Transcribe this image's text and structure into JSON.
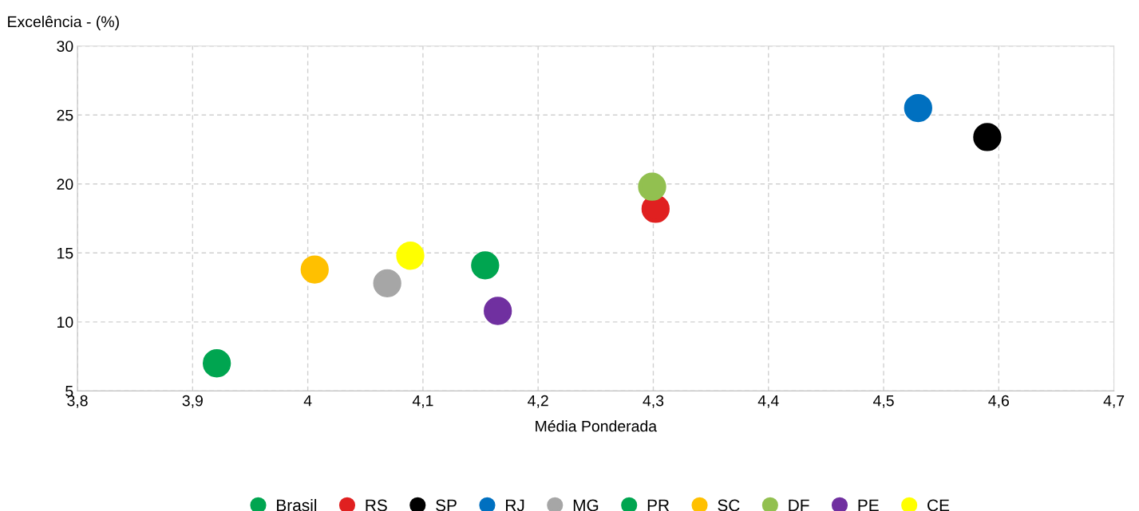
{
  "chart_data": {
    "type": "scatter",
    "xlabel": "Média Ponderada",
    "ylabel": "Excelência - (%)",
    "xlim": [
      3.8,
      4.7
    ],
    "xticks": [
      {
        "value": 3.8,
        "label": "3,8"
      },
      {
        "value": 3.9,
        "label": "3,9"
      },
      {
        "value": 4.0,
        "label": "4"
      },
      {
        "value": 4.1,
        "label": "4,1"
      },
      {
        "value": 4.2,
        "label": "4,2"
      },
      {
        "value": 4.3,
        "label": "4,3"
      },
      {
        "value": 4.4,
        "label": "4,4"
      },
      {
        "value": 4.5,
        "label": "4,5"
      },
      {
        "value": 4.6,
        "label": "4,6"
      },
      {
        "value": 4.7,
        "label": "4,7"
      }
    ],
    "ylim": [
      5,
      30
    ],
    "yticks": [
      5,
      10,
      15,
      20,
      25,
      30
    ],
    "grid": true,
    "legend": "bottom",
    "marker": "circle",
    "series": [
      {
        "name": "Brasil",
        "color": "#00a550",
        "x": [
          4.154
        ],
        "values": [
          14.1
        ]
      },
      {
        "name": "RS",
        "color": "#e02020",
        "x": [
          4.302
        ],
        "values": [
          18.2
        ]
      },
      {
        "name": "SP",
        "color": "#000000",
        "x": [
          4.59
        ],
        "values": [
          23.4
        ]
      },
      {
        "name": "RJ",
        "color": "#0070c0",
        "x": [
          4.53
        ],
        "values": [
          25.5
        ]
      },
      {
        "name": "MG",
        "color": "#a6a6a6",
        "x": [
          4.069
        ],
        "values": [
          12.8
        ]
      },
      {
        "name": "PR",
        "color": "#00a550",
        "x": [
          3.921
        ],
        "values": [
          7.0
        ]
      },
      {
        "name": "SC",
        "color": "#ffc000",
        "x": [
          4.006
        ],
        "values": [
          13.8
        ]
      },
      {
        "name": "DF",
        "color": "#92c050",
        "x": [
          4.299
        ],
        "values": [
          19.8
        ]
      },
      {
        "name": "PE",
        "color": "#7030a0",
        "x": [
          4.165
        ],
        "values": [
          10.8
        ]
      },
      {
        "name": "CE",
        "color": "#ffff00",
        "x": [
          4.089
        ],
        "values": [
          14.8
        ]
      }
    ]
  }
}
